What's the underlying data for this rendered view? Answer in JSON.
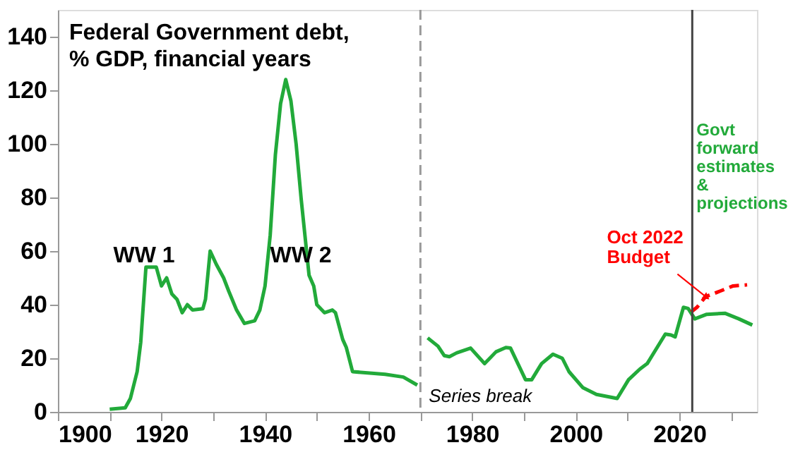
{
  "chart_data": {
    "type": "line",
    "title": "Federal Government debt,\n% GDP, financial years",
    "xlim": [
      1900,
      2035
    ],
    "xticks": [
      1900,
      {
        "value": 1910,
        "label": null
      },
      1920,
      {
        "value": 1930,
        "label": null
      },
      1940,
      {
        "value": 1950,
        "label": null
      },
      1960,
      {
        "value": 1970,
        "label": null
      },
      1980,
      {
        "value": 1990,
        "label": null
      },
      2000,
      {
        "value": 2010,
        "label": null
      },
      2020,
      {
        "value": 2030,
        "label": null
      }
    ],
    "ylim": [
      0,
      150
    ],
    "yticks": [
      0,
      20,
      40,
      60,
      80,
      100,
      120,
      140
    ],
    "series": [
      {
        "color": "#22aa3a",
        "line_style": "solid",
        "x": [
          1910,
          1913,
          1914,
          1915.3,
          1916,
          1917,
          1918.3,
          1919,
          1920,
          1921,
          1922,
          1923,
          1924,
          1925,
          1926,
          1928,
          1928.5,
          1929.4,
          1930.6,
          1932,
          1933,
          1934.5,
          1936,
          1938,
          1939,
          1940,
          1941,
          1942,
          1943,
          1944,
          1945,
          1946,
          1947,
          1948.5,
          1949.4,
          1950,
          1951.5,
          1953,
          1953.6,
          1955,
          1955.7,
          1956.9,
          1963.2,
          1966.7,
          1969.4,
          1970,
          1971.4,
          1973.4,
          1974.6,
          1975.6,
          1977,
          1979.7,
          1982.4,
          1984.6,
          1986.5,
          1987.4,
          1990.3,
          1991.5,
          1993.4,
          1995.6,
          1997.4,
          1998.7,
          2001.4,
          2004,
          2008,
          2010.2,
          2012.4,
          2013.8,
          2017.3,
          2018.4,
          2019.2,
          2020.8,
          2021.7,
          2023,
          2025.3,
          2028.8,
          2031.5,
          2034.1
        ],
        "values": [
          1,
          1.5,
          5,
          15,
          26,
          54,
          54,
          54,
          47,
          50,
          44,
          42,
          37,
          40,
          38,
          38.5,
          42,
          60,
          55,
          50,
          45,
          38,
          33,
          34,
          38,
          47,
          66,
          96,
          115,
          124,
          116,
          100,
          79,
          51,
          47,
          40,
          37,
          38,
          37,
          27,
          24,
          15,
          14,
          13,
          10,
          null,
          27.6,
          24.5,
          21,
          20.6,
          22,
          23.8,
          18,
          22.4,
          24,
          23.8,
          12,
          12,
          18,
          21.5,
          20,
          15,
          9,
          6.5,
          5,
          12,
          16,
          18,
          29,
          28.7,
          28,
          39,
          38.6,
          34.7,
          36.4,
          36.8,
          34.7,
          32.4
        ]
      },
      {
        "color": "#ff0000",
        "line_style": "dashed",
        "x": [
          2022.3,
          2023.4,
          2025.1,
          2027.8,
          2030.4,
          2033.1
        ],
        "values": [
          37.3,
          39,
          43,
          45,
          47,
          47.4
        ]
      }
    ],
    "ref_lines": [
      {
        "axis": "x",
        "value": 1970,
        "label": "Series break",
        "color": "#999999",
        "line_style": "dashed"
      },
      {
        "axis": "x",
        "value": 2022.5,
        "label": "Govt\nforward\nestimates\n&\nprojections",
        "color": "#444444",
        "line_style": "solid"
      }
    ],
    "annotations": [
      "WW 1",
      "WW 2",
      {
        "text": "Oct 2022\nBudget",
        "x": 2025.1,
        "y": 43
      }
    ]
  }
}
